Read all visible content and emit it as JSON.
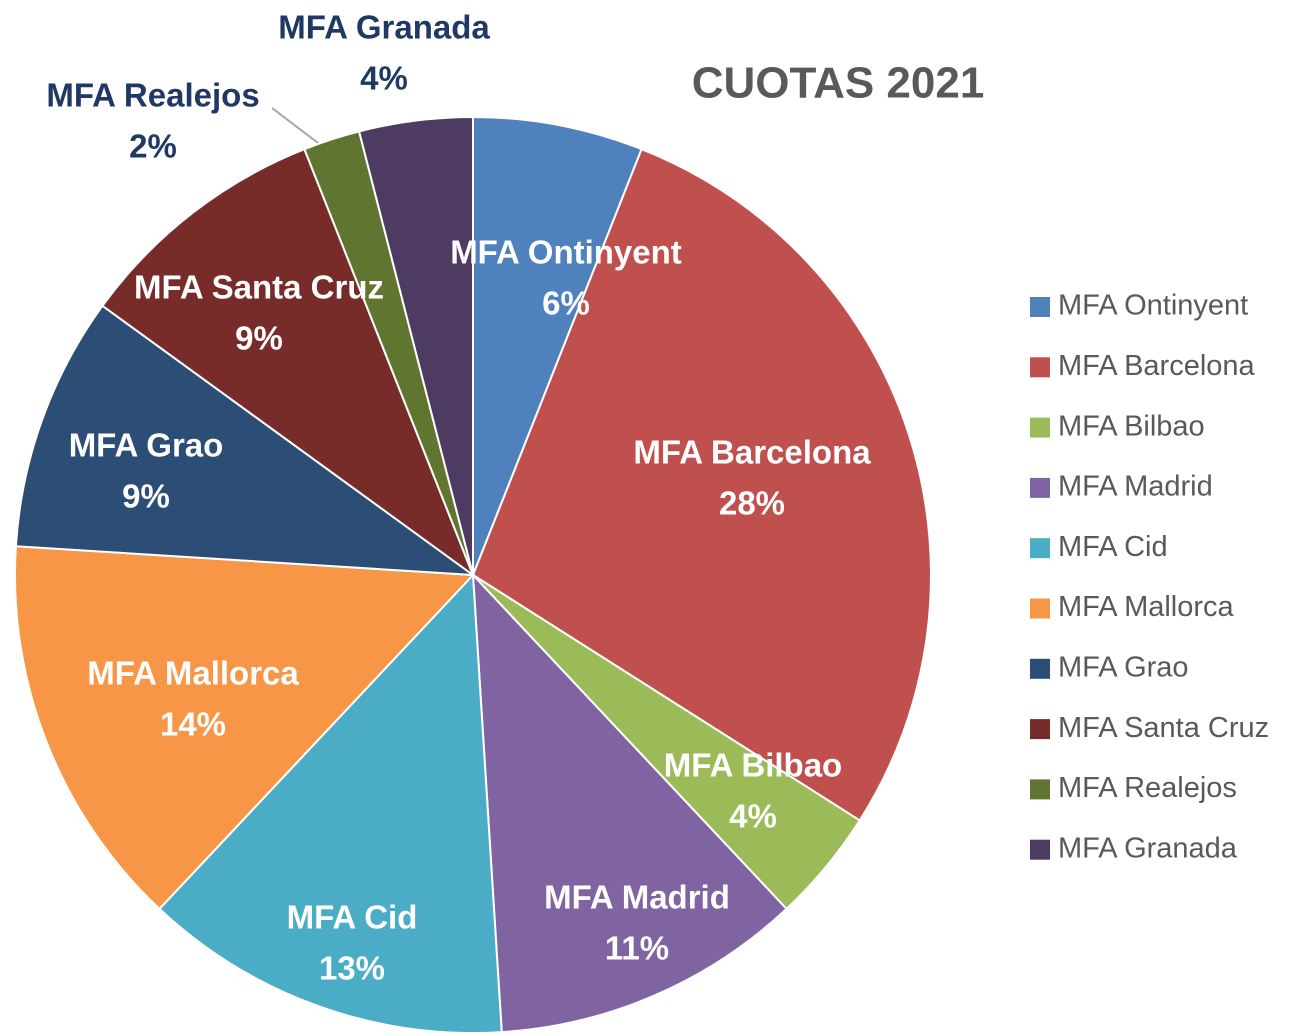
{
  "chart_data": {
    "type": "pie",
    "title": "CUOTAS 2021",
    "categories": [
      "MFA Ontinyent",
      "MFA Barcelona",
      "MFA Bilbao",
      "MFA Madrid",
      "MFA Cid",
      "MFA Mallorca",
      "MFA Grao",
      "MFA Santa Cruz",
      "MFA Realejos",
      "MFA Granada"
    ],
    "values": [
      6,
      28,
      4,
      11,
      13,
      14,
      9,
      9,
      2,
      4
    ],
    "value_labels": [
      "6%",
      "28%",
      "4%",
      "11%",
      "13%",
      "14%",
      "9%",
      "9%",
      "2%",
      "4%"
    ],
    "colors": [
      "#4f81bd",
      "#c0504d",
      "#9bbb59",
      "#8064a2",
      "#4bacc6",
      "#f79646",
      "#2c4d75",
      "#772c2a",
      "#5f7530",
      "#4d3b62"
    ],
    "legend": "right"
  }
}
